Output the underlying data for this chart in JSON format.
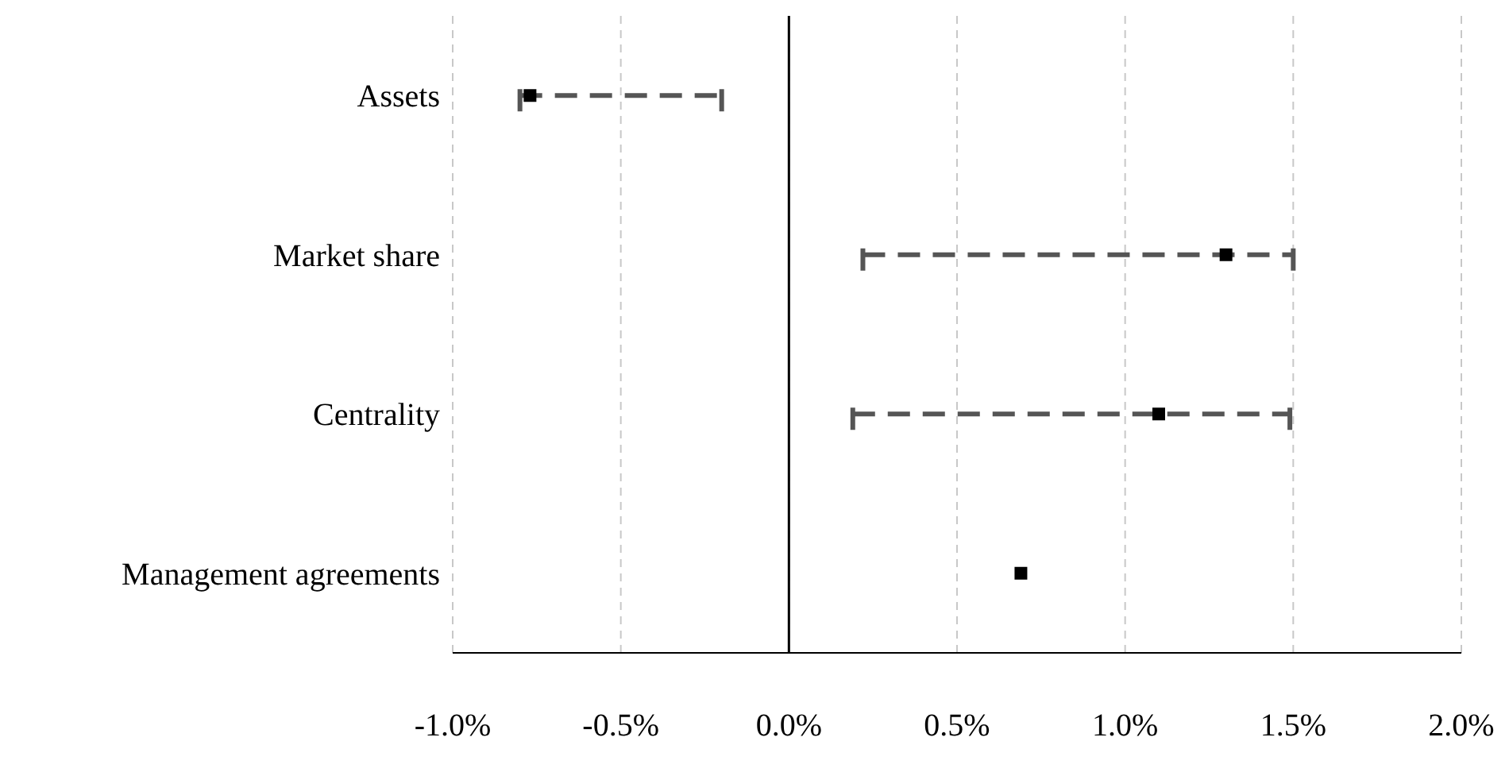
{
  "chart_data": {
    "type": "scatter",
    "orientation": "horizontal",
    "categories": [
      "Assets",
      "Market share",
      "Centrality",
      "Management agreements"
    ],
    "values": [
      -0.77,
      1.3,
      1.1,
      0.69
    ],
    "color": "#000000",
    "errors": [
      [
        -0.8,
        -0.2
      ],
      [
        0.22,
        1.5
      ],
      [
        0.19,
        1.49
      ],
      null
    ],
    "xlim": [
      -1,
      2
    ],
    "xticks": [
      {
        "value": -1,
        "label": "-1.0%"
      },
      {
        "value": -0.5,
        "label": "-0.5%"
      },
      {
        "value": 0,
        "label": "0.0%"
      },
      {
        "value": 0.5,
        "label": "0.5%"
      },
      {
        "value": 1,
        "label": "1.0%"
      },
      {
        "value": 1.5,
        "label": "1.5%"
      },
      {
        "value": 2,
        "label": "2.0%"
      }
    ],
    "ref_lines": [
      {
        "axis": "x",
        "value": 0,
        "color": "#000000"
      }
    ],
    "grid": "x",
    "marker": "square",
    "line_style": "dashed"
  }
}
